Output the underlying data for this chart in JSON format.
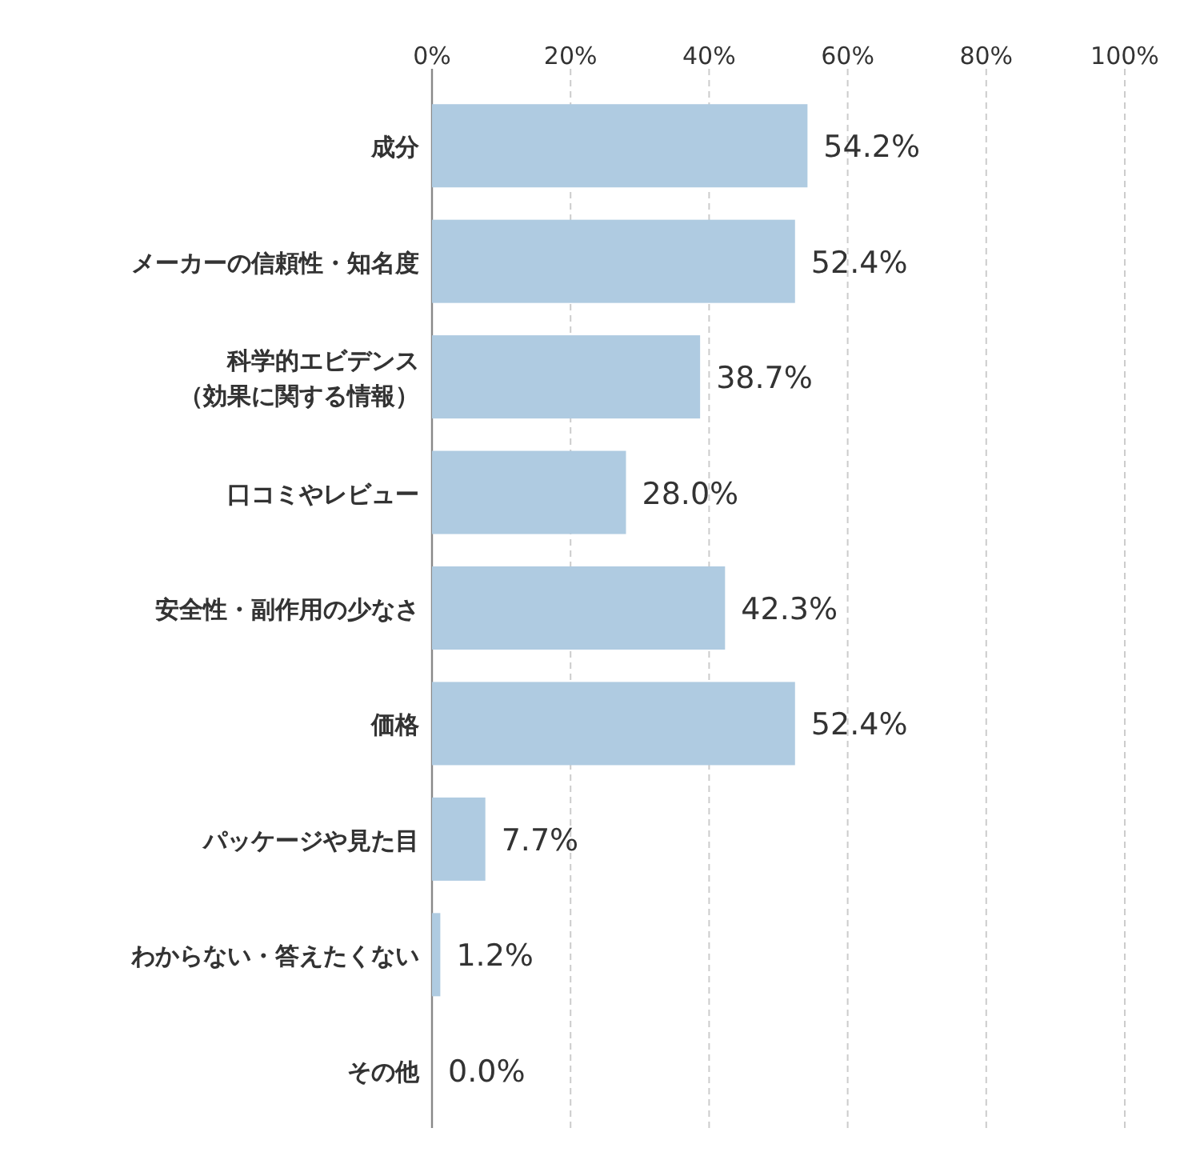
{
  "chart_data": {
    "type": "bar",
    "orientation": "horizontal",
    "categories": [
      "成分",
      "メーカーの信頼性・知名度",
      "科学的エビデンス（効果に関する情報）",
      "口コミやレビュー",
      "安全性・副作用の少なさ",
      "価格",
      "パッケージや見た目",
      "わからない・答えたくない",
      "その他"
    ],
    "values": [
      54.2,
      52.4,
      38.7,
      28.0,
      42.3,
      52.4,
      7.7,
      1.2,
      0.0
    ],
    "value_labels": [
      "54.2%",
      "52.4%",
      "38.7%",
      "28.0%",
      "42.3%",
      "52.4%",
      "7.7%",
      "1.2%",
      "0.0%"
    ],
    "color": "#afcbe1",
    "xlim": [
      0,
      100
    ],
    "xticks": [
      {
        "value": 0,
        "label": "0%"
      },
      {
        "value": 20,
        "label": "20%"
      },
      {
        "value": 40,
        "label": "40%"
      },
      {
        "value": 60,
        "label": "60%"
      },
      {
        "value": 80,
        "label": "80%"
      },
      {
        "value": 100,
        "label": "100%"
      }
    ],
    "grid": "x"
  }
}
